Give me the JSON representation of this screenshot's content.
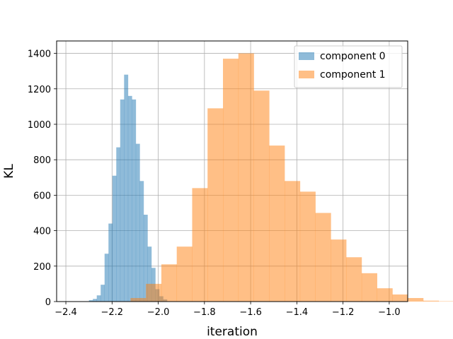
{
  "chart_data": {
    "type": "histogram",
    "xlabel": "iteration",
    "ylabel": "KL",
    "xlim": [
      -2.44,
      -0.92
    ],
    "ylim": [
      0,
      1470
    ],
    "xticks": [
      -2.4,
      -2.2,
      -2.0,
      -1.8,
      -1.6,
      -1.4,
      -1.2,
      -1.0
    ],
    "xtick_labels": [
      "−2.4",
      "−2.2",
      "−2.0",
      "−1.8",
      "−1.6",
      "−1.4",
      "−1.2",
      "−1.0"
    ],
    "yticks": [
      0,
      200,
      400,
      600,
      800,
      1000,
      1200,
      1400
    ],
    "ytick_labels": [
      "0",
      "200",
      "400",
      "600",
      "800",
      "1000",
      "1200",
      "1400"
    ],
    "grid": true,
    "legend_position": "top-right",
    "series": [
      {
        "name": "component 0",
        "color": "#1f77b4",
        "alpha": 0.5,
        "bin_start": -2.3,
        "bin_width": 0.0169,
        "values": [
          8,
          15,
          35,
          95,
          270,
          440,
          710,
          870,
          1140,
          1280,
          1160,
          1140,
          890,
          680,
          490,
          310,
          190,
          70,
          30,
          12
        ]
      },
      {
        "name": "component 1",
        "color": "#ff7f0e",
        "alpha": 0.5,
        "bin_start": -2.12,
        "bin_width": 0.0667,
        "values": [
          20,
          100,
          210,
          310,
          640,
          1090,
          1370,
          1400,
          1190,
          880,
          680,
          620,
          500,
          350,
          250,
          160,
          75,
          40,
          20,
          5,
          2
        ]
      }
    ]
  }
}
